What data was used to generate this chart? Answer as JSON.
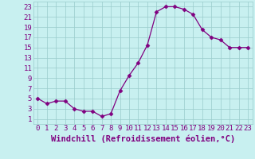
{
  "x": [
    0,
    1,
    2,
    3,
    4,
    5,
    6,
    7,
    8,
    9,
    10,
    11,
    12,
    13,
    14,
    15,
    16,
    17,
    18,
    19,
    20,
    21,
    22,
    23
  ],
  "y": [
    5,
    4,
    4.5,
    4.5,
    3,
    2.5,
    2.5,
    1.5,
    2,
    6.5,
    9.5,
    12,
    15.5,
    22,
    23,
    23,
    22.5,
    21.5,
    18.5,
    17,
    16.5,
    15,
    15,
    15
  ],
  "line_color": "#800080",
  "marker": "D",
  "marker_size": 2.5,
  "bg_color": "#c8f0f0",
  "grid_color": "#99cccc",
  "xlabel": "Windchill (Refroidissement éolien,°C)",
  "xlabel_color": "#800080",
  "tick_color": "#800080",
  "xlim": [
    -0.5,
    23.5
  ],
  "ylim": [
    0,
    24
  ],
  "yticks": [
    1,
    3,
    5,
    7,
    9,
    11,
    13,
    15,
    17,
    19,
    21,
    23
  ],
  "xticks": [
    0,
    1,
    2,
    3,
    4,
    5,
    6,
    7,
    8,
    9,
    10,
    11,
    12,
    13,
    14,
    15,
    16,
    17,
    18,
    19,
    20,
    21,
    22,
    23
  ],
  "tick_fontsize": 6.5,
  "xlabel_fontsize": 7.5
}
